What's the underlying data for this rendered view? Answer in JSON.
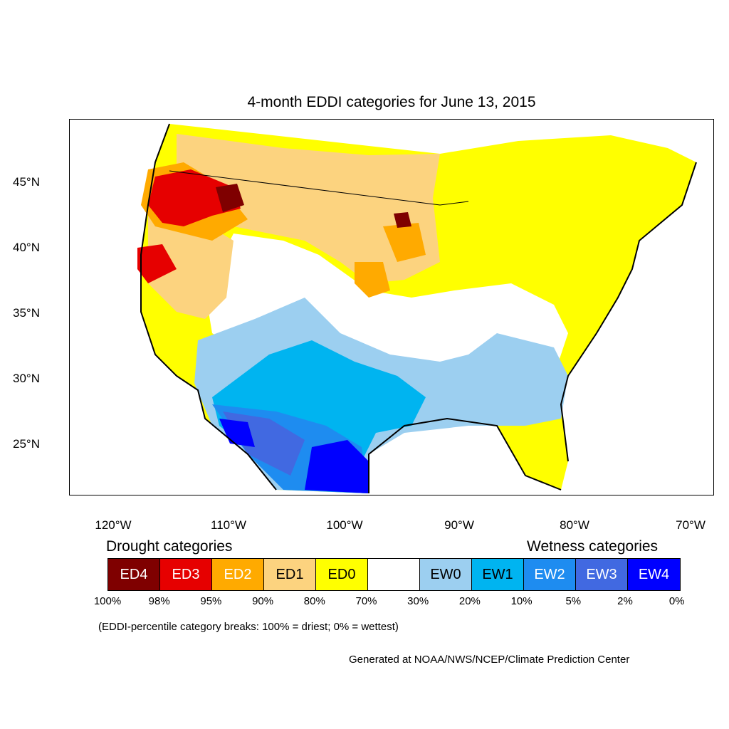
{
  "title": "4-month EDDI categories for June 13, 2015",
  "lat_labels": [
    "45°N",
    "40°N",
    "35°N",
    "30°N",
    "25°N"
  ],
  "lon_labels": [
    "120°W",
    "110°W",
    "100°W",
    "90°W",
    "80°W",
    "70°W"
  ],
  "legend": {
    "drought_heading": "Drought categories",
    "wetness_heading": "Wetness categories",
    "categories": [
      {
        "label": "ED4",
        "color": "#7f0000",
        "text_color": "#ffffff"
      },
      {
        "label": "ED3",
        "color": "#e60000",
        "text_color": "#ffffff"
      },
      {
        "label": "ED2",
        "color": "#ffaa00",
        "text_color": "#ffffff"
      },
      {
        "label": "ED1",
        "color": "#fcd37f",
        "text_color": "#000000"
      },
      {
        "label": "ED0",
        "color": "#ffff00",
        "text_color": "#000000"
      },
      {
        "label": "",
        "color": "#ffffff",
        "text_color": "#000000"
      },
      {
        "label": "EW0",
        "color": "#9ccff0",
        "text_color": "#000000"
      },
      {
        "label": "EW1",
        "color": "#00b4f0",
        "text_color": "#000000"
      },
      {
        "label": "EW2",
        "color": "#1e8cf0",
        "text_color": "#ffffff"
      },
      {
        "label": "EW3",
        "color": "#4169e1",
        "text_color": "#ffffff"
      },
      {
        "label": "EW4",
        "color": "#0000ff",
        "text_color": "#ffffff"
      }
    ],
    "percentiles": [
      "100%",
      "98%",
      "95%",
      "90%",
      "80%",
      "70%",
      "30%",
      "20%",
      "10%",
      "5%",
      "2%",
      "0%"
    ]
  },
  "note": "(EDDI-percentile category breaks: 100% = driest; 0% = wettest)",
  "credit": "Generated at NOAA/NWS/NCEP/Climate Prediction Center"
}
